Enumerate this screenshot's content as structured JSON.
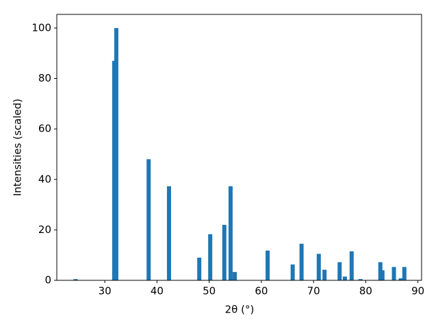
{
  "chart_data": {
    "type": "bar",
    "xlabel": "2θ (°)",
    "ylabel": "Intensities (scaled)",
    "x": [
      24.4,
      31.8,
      32.2,
      38.4,
      42.3,
      48.1,
      50.2,
      52.9,
      54.1,
      54.9,
      61.2,
      66.0,
      67.7,
      71.0,
      72.1,
      75.0,
      76.0,
      77.3,
      79.0,
      82.8,
      83.2,
      85.4,
      86.7,
      87.4
    ],
    "values": [
      0.5,
      87,
      100,
      48,
      37.3,
      9,
      18.3,
      22,
      37.3,
      3.3,
      11.8,
      6.3,
      14.5,
      10.5,
      4.2,
      7.2,
      1.5,
      11.5,
      0.5,
      7.2,
      4,
      5.3,
      0.8,
      5.3
    ],
    "color": "#1f77b4",
    "xlim": [
      20.8,
      90.7
    ],
    "xticks": [
      30,
      40,
      50,
      60,
      70,
      80,
      90
    ],
    "ylim": [
      0,
      105.4
    ],
    "yticks": [
      0,
      20,
      40,
      60,
      80,
      100
    ],
    "grid": false
  }
}
